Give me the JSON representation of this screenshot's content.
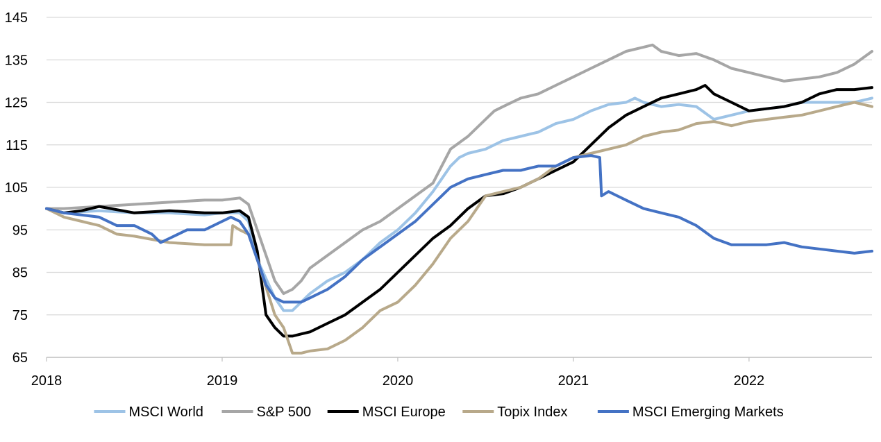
{
  "chart_data": {
    "type": "line",
    "title": "",
    "xlabel": "",
    "ylabel": "",
    "xlim": [
      2018.0,
      2022.7
    ],
    "ylim": [
      65,
      145
    ],
    "x_ticks": [
      2018,
      2019,
      2020,
      2021,
      2022
    ],
    "x_tick_labels": [
      "2018",
      "2019",
      "2020",
      "2021",
      "2022"
    ],
    "y_ticks": [
      65,
      75,
      85,
      95,
      105,
      115,
      125,
      135,
      145
    ],
    "y_tick_labels": [
      "65",
      "75",
      "85",
      "95",
      "105",
      "115",
      "125",
      "135",
      "145"
    ],
    "grid": "horizontal",
    "legend_position": "bottom",
    "series": [
      {
        "name": "MSCI World",
        "color": "#9dc3e6",
        "x": [
          2018.0,
          2018.1,
          2018.3,
          2018.5,
          2018.7,
          2018.9,
          2019.0,
          2019.1,
          2019.15,
          2019.2,
          2019.3,
          2019.35,
          2019.4,
          2019.45,
          2019.5,
          2019.6,
          2019.7,
          2019.8,
          2019.9,
          2020.0,
          2020.1,
          2020.2,
          2020.3,
          2020.35,
          2020.4,
          2020.5,
          2020.6,
          2020.7,
          2020.8,
          2020.9,
          2021.0,
          2021.1,
          2021.2,
          2021.3,
          2021.35,
          2021.4,
          2021.5,
          2021.6,
          2021.7,
          2021.8,
          2021.9,
          2022.0,
          2022.1,
          2022.2,
          2022.3,
          2022.4,
          2022.5,
          2022.6,
          2022.7
        ],
        "values": [
          100,
          99,
          99.5,
          99,
          99,
          98.5,
          99,
          99,
          97,
          88,
          79,
          76,
          76,
          78,
          80,
          83,
          85,
          88,
          92,
          95,
          99,
          104,
          110,
          112,
          113,
          114,
          116,
          117,
          118,
          120,
          121,
          123,
          124.5,
          125,
          126,
          125,
          124,
          124.5,
          124,
          121,
          122,
          123,
          123.5,
          124,
          125,
          125,
          125,
          125,
          126
        ]
      },
      {
        "name": "S&P 500",
        "color": "#a6a6a6",
        "x": [
          2018.0,
          2018.1,
          2018.3,
          2018.5,
          2018.7,
          2018.9,
          2019.0,
          2019.1,
          2019.15,
          2019.2,
          2019.3,
          2019.35,
          2019.4,
          2019.45,
          2019.5,
          2019.6,
          2019.7,
          2019.8,
          2019.9,
          2020.0,
          2020.1,
          2020.2,
          2020.25,
          2020.3,
          2020.4,
          2020.5,
          2020.55,
          2020.6,
          2020.7,
          2020.8,
          2020.9,
          2021.0,
          2021.1,
          2021.2,
          2021.3,
          2021.4,
          2021.45,
          2021.5,
          2021.6,
          2021.7,
          2021.8,
          2021.9,
          2022.0,
          2022.1,
          2022.2,
          2022.3,
          2022.4,
          2022.5,
          2022.6,
          2022.7
        ],
        "values": [
          100,
          100,
          100.5,
          101,
          101.5,
          102,
          102,
          102.5,
          101,
          95,
          83,
          80,
          81,
          83,
          86,
          89,
          92,
          95,
          97,
          100,
          103,
          106,
          110,
          114,
          117,
          121,
          123,
          124,
          126,
          127,
          129,
          131,
          133,
          135,
          137,
          138,
          138.5,
          137,
          136,
          136.5,
          135,
          133,
          132,
          131,
          130,
          130.5,
          131,
          132,
          134,
          137
        ]
      },
      {
        "name": "MSCI Europe",
        "color": "#000000",
        "x": [
          2018.0,
          2018.1,
          2018.2,
          2018.3,
          2018.5,
          2018.7,
          2018.9,
          2019.0,
          2019.1,
          2019.15,
          2019.2,
          2019.25,
          2019.3,
          2019.35,
          2019.4,
          2019.45,
          2019.5,
          2019.6,
          2019.7,
          2019.8,
          2019.9,
          2020.0,
          2020.1,
          2020.2,
          2020.3,
          2020.4,
          2020.5,
          2020.6,
          2020.7,
          2020.8,
          2020.9,
          2021.0,
          2021.1,
          2021.2,
          2021.3,
          2021.4,
          2021.5,
          2021.6,
          2021.7,
          2021.75,
          2021.8,
          2021.9,
          2022.0,
          2022.1,
          2022.2,
          2022.3,
          2022.4,
          2022.5,
          2022.6,
          2022.7
        ],
        "values": [
          100,
          99,
          99.5,
          100.5,
          99,
          99.5,
          99,
          99,
          99.5,
          98,
          90,
          75,
          72,
          70,
          70,
          70.5,
          71,
          73,
          75,
          78,
          81,
          85,
          89,
          93,
          96,
          100,
          103,
          103.5,
          105,
          107,
          109,
          111,
          115,
          119,
          122,
          124,
          126,
          127,
          128,
          129,
          127,
          125,
          123,
          123.5,
          124,
          125,
          127,
          128,
          128,
          128.5
        ]
      },
      {
        "name": "Topix Index",
        "color": "#b8a98a",
        "x": [
          2018.0,
          2018.1,
          2018.2,
          2018.3,
          2018.4,
          2018.5,
          2018.7,
          2018.9,
          2019.0,
          2019.05,
          2019.06,
          2019.1,
          2019.15,
          2019.2,
          2019.3,
          2019.35,
          2019.4,
          2019.45,
          2019.5,
          2019.6,
          2019.7,
          2019.8,
          2019.9,
          2020.0,
          2020.1,
          2020.2,
          2020.3,
          2020.4,
          2020.5,
          2020.6,
          2020.7,
          2020.8,
          2020.9,
          2021.0,
          2021.1,
          2021.2,
          2021.3,
          2021.4,
          2021.5,
          2021.6,
          2021.7,
          2021.8,
          2021.9,
          2022.0,
          2022.1,
          2022.2,
          2022.3,
          2022.4,
          2022.5,
          2022.6,
          2022.7
        ],
        "values": [
          100,
          98,
          97,
          96,
          94,
          93.5,
          92,
          91.5,
          91.5,
          91.5,
          96,
          95,
          94,
          88,
          75,
          72,
          66,
          66,
          66.5,
          67,
          69,
          72,
          76,
          78,
          82,
          87,
          93,
          97,
          103,
          104,
          105,
          107,
          110,
          112,
          113,
          114,
          115,
          117,
          118,
          118.5,
          120,
          120.5,
          119.5,
          120.5,
          121,
          121.5,
          122,
          123,
          124,
          125,
          124
        ]
      },
      {
        "name": "MSCI Emerging Markets",
        "color": "#4472c4",
        "x": [
          2018.0,
          2018.1,
          2018.2,
          2018.3,
          2018.4,
          2018.5,
          2018.6,
          2018.65,
          2018.7,
          2018.8,
          2018.9,
          2019.0,
          2019.05,
          2019.1,
          2019.15,
          2019.2,
          2019.25,
          2019.3,
          2019.35,
          2019.4,
          2019.45,
          2019.5,
          2019.6,
          2019.7,
          2019.8,
          2019.9,
          2020.0,
          2020.1,
          2020.2,
          2020.3,
          2020.4,
          2020.5,
          2020.6,
          2020.7,
          2020.8,
          2020.9,
          2021.0,
          2021.1,
          2021.15,
          2021.16,
          2021.2,
          2021.3,
          2021.4,
          2021.5,
          2021.6,
          2021.7,
          2021.8,
          2021.9,
          2022.0,
          2022.1,
          2022.2,
          2022.3,
          2022.4,
          2022.5,
          2022.6,
          2022.7
        ],
        "values": [
          100,
          99,
          98.5,
          98,
          96,
          96,
          94,
          92,
          93,
          95,
          95,
          97,
          98,
          97,
          94,
          88,
          82,
          79,
          78,
          78,
          78,
          79,
          81,
          84,
          88,
          91,
          94,
          97,
          101,
          105,
          107,
          108,
          109,
          109,
          110,
          110,
          112,
          112.5,
          112,
          103,
          104,
          102,
          100,
          99,
          98,
          96,
          93,
          91.5,
          91.5,
          91.5,
          92,
          91,
          90.5,
          90,
          89.5,
          90
        ]
      }
    ]
  }
}
